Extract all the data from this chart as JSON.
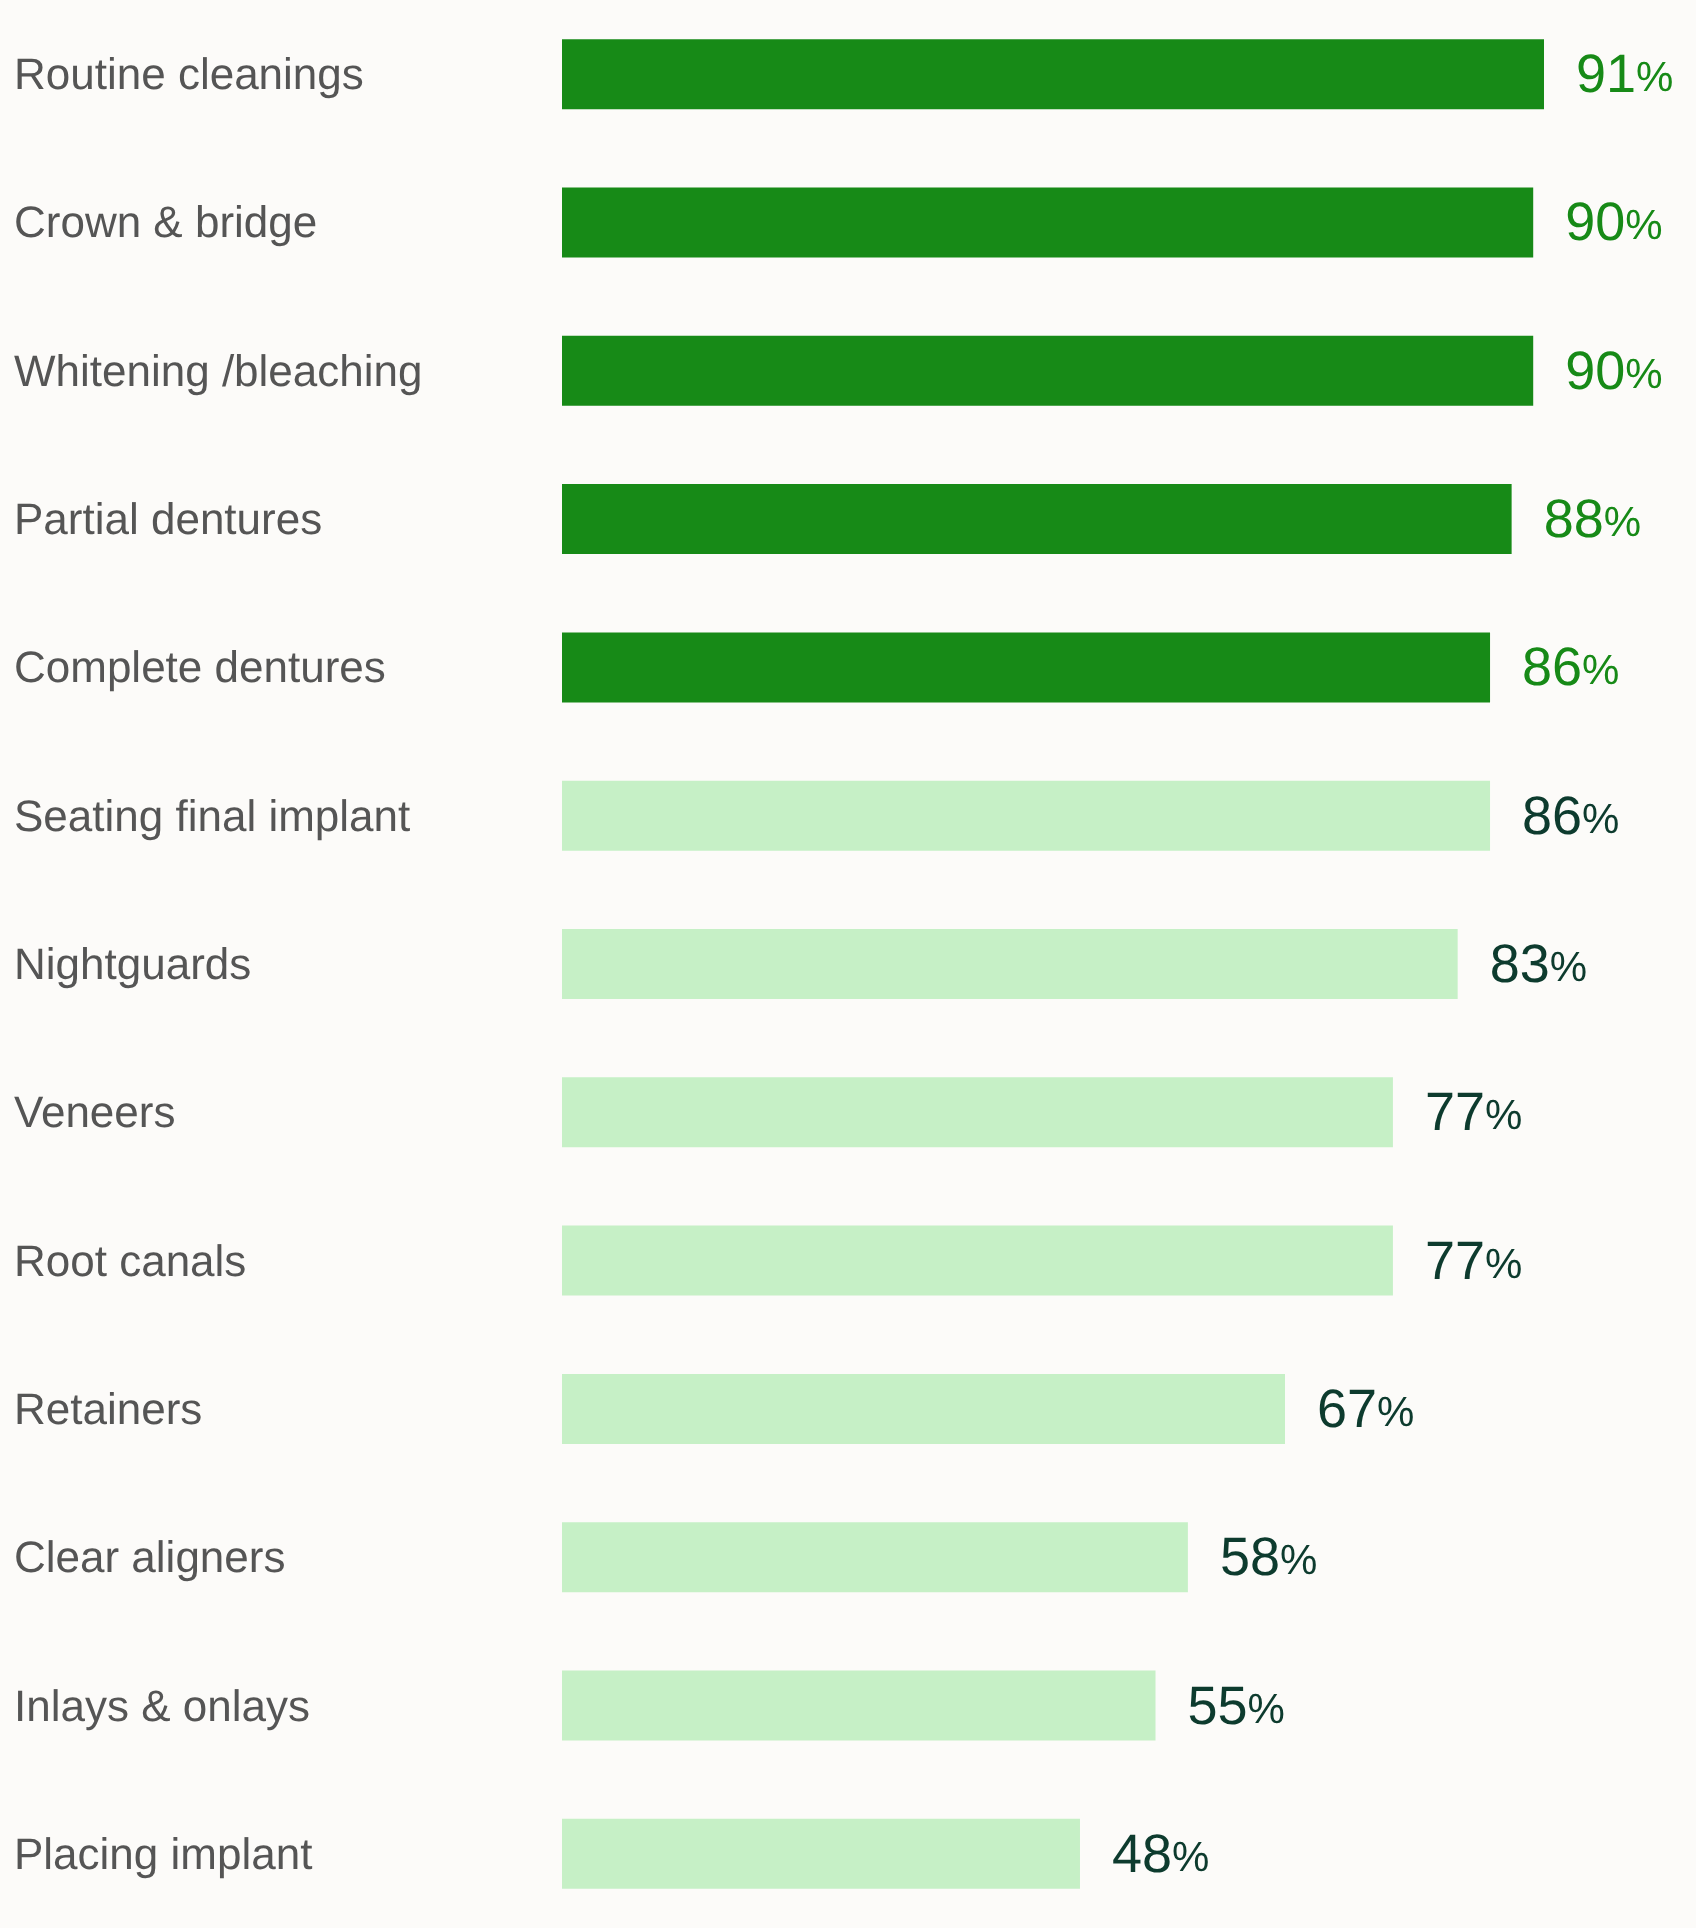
{
  "chart_data": {
    "type": "bar",
    "orientation": "horizontal",
    "categories": [
      "Routine cleanings",
      "Crown & bridge",
      "Whitening /bleaching",
      "Partial dentures",
      "Complete dentures",
      "Seating final implant",
      "Nightguards",
      "Veneers",
      "Root canals",
      "Retainers",
      "Clear aligners",
      "Inlays & onlays",
      "Placing implant"
    ],
    "values": [
      91,
      90,
      90,
      88,
      86,
      86,
      83,
      77,
      77,
      67,
      58,
      55,
      48
    ],
    "value_labels": [
      "91%",
      "90%",
      "90%",
      "88%",
      "86%",
      "86%",
      "83%",
      "77%",
      "77%",
      "67%",
      "58%",
      "55%",
      "48%"
    ],
    "colors": [
      "#178a17",
      "#178a17",
      "#178a17",
      "#178a17",
      "#178a17",
      "#c6f0c6",
      "#c6f0c6",
      "#c6f0c6",
      "#c6f0c6",
      "#c6f0c6",
      "#c6f0c6",
      "#c6f0c6",
      "#c6f0c6"
    ],
    "tick_labels": "y"
  }
}
